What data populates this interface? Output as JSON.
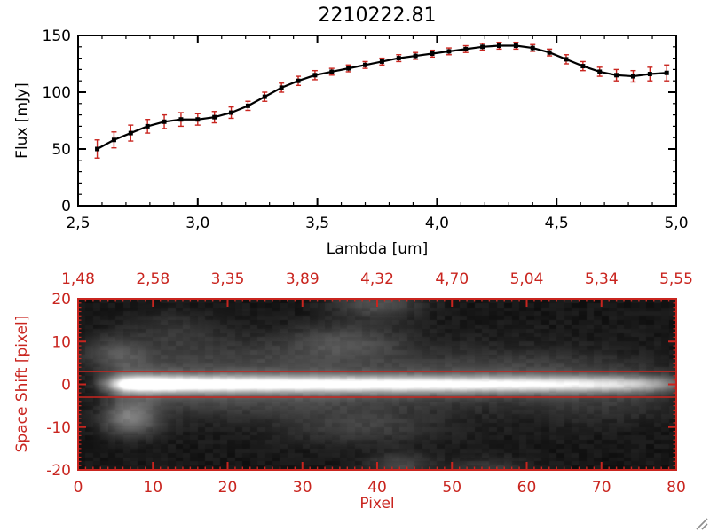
{
  "window": {
    "background": "#ffffff"
  },
  "palette": {
    "axis_black": "#000000",
    "axis_red": "#c9251f"
  },
  "resize_grip": {
    "present": true,
    "color": "#8f8f8f"
  },
  "chart_data": [
    {
      "type": "line",
      "title": "2210222.81",
      "xlabel": "Lambda [um]",
      "ylabel": "Flux [mJy]",
      "xlim": [
        2.5,
        5.0
      ],
      "ylim": [
        0,
        150
      ],
      "xticks": [
        2.5,
        3.0,
        3.5,
        4.0,
        4.5,
        5.0
      ],
      "xtick_labels": [
        "2,5",
        "3,0",
        "3,5",
        "4,0",
        "4,5",
        "5,0"
      ],
      "x_minor_step": 0.1,
      "yticks": [
        0,
        50,
        100,
        150
      ],
      "ytick_labels": [
        "0",
        "50",
        "100",
        "150"
      ],
      "y_minor_step": 10,
      "grid": false,
      "marker": "filled-square",
      "line_color": "#000000",
      "marker_color": "#000000",
      "axis_color": "#000000",
      "error_color": "#c9251f",
      "x": [
        2.58,
        2.65,
        2.72,
        2.79,
        2.86,
        2.93,
        3.0,
        3.07,
        3.14,
        3.21,
        3.28,
        3.35,
        3.42,
        3.49,
        3.56,
        3.63,
        3.7,
        3.77,
        3.84,
        3.91,
        3.98,
        4.05,
        4.12,
        4.19,
        4.26,
        4.33,
        4.4,
        4.47,
        4.54,
        4.61,
        4.68,
        4.75,
        4.82,
        4.89,
        4.96
      ],
      "y": [
        50,
        58,
        64,
        70,
        74,
        76,
        76,
        78,
        82,
        88,
        96,
        104,
        110,
        115,
        118,
        121,
        124,
        127,
        130,
        132,
        134,
        136,
        138,
        140,
        141,
        141,
        139,
        135,
        129,
        123,
        118,
        115,
        114,
        116,
        117
      ],
      "yerr": [
        8,
        7,
        7,
        6,
        6,
        6,
        5,
        5,
        5,
        4,
        4,
        4,
        4,
        4,
        3,
        3,
        3,
        3,
        3,
        3,
        3,
        3,
        3,
        3,
        3,
        3,
        3,
        3,
        4,
        4,
        4,
        5,
        5,
        6,
        7
      ]
    },
    {
      "type": "heatmap",
      "xlabel": "Pixel",
      "ylabel": "Space Shift [pixel]",
      "axis_color": "#c9251f",
      "colormap": "grayscale",
      "xlim": [
        0,
        80
      ],
      "ylim": [
        -20,
        20
      ],
      "xticks": [
        0,
        10,
        20,
        30,
        40,
        50,
        60,
        70,
        80
      ],
      "xtick_labels": [
        "0",
        "10",
        "20",
        "30",
        "40",
        "50",
        "60",
        "70",
        "80"
      ],
      "x_minor_step": 1,
      "yticks": [
        20,
        10,
        0,
        -10,
        -20
      ],
      "ytick_labels": [
        "20",
        "10",
        "0",
        "-10",
        "-20"
      ],
      "y_minor_step": 1,
      "top_axis_tick_labels": [
        "1,48",
        "2,58",
        "3,35",
        "3,89",
        "4,32",
        "4,70",
        "5,04",
        "5,34",
        "5,55"
      ],
      "extraction_window": [
        3,
        -3
      ],
      "trace": {
        "center": 0,
        "sigma_core": 1.3,
        "wing1_frac": 0.22,
        "wing1_sigma": 3.0,
        "wing2_frac": 0.06,
        "wing2_sigma": 7.5,
        "profile": [
          [
            0,
            0
          ],
          [
            2,
            5
          ],
          [
            4,
            32
          ],
          [
            6,
            82
          ],
          [
            8,
            100
          ],
          [
            10,
            100
          ],
          [
            13,
            96
          ],
          [
            17,
            90
          ],
          [
            22,
            87
          ],
          [
            28,
            85
          ],
          [
            35,
            83
          ],
          [
            42,
            82
          ],
          [
            50,
            80
          ],
          [
            57,
            77
          ],
          [
            63,
            73
          ],
          [
            68,
            70
          ],
          [
            72,
            64
          ],
          [
            75,
            55
          ],
          [
            78,
            38
          ],
          [
            80,
            22
          ]
        ]
      },
      "blobs": [
        {
          "x": 7,
          "y": -8,
          "sx": 2.5,
          "sy": 2.8,
          "a": 34
        },
        {
          "x": 5,
          "y": 7,
          "sx": 3,
          "sy": 3,
          "a": 16
        },
        {
          "x": 25,
          "y": 7,
          "sx": 16,
          "sy": 3.5,
          "a": 9
        },
        {
          "x": 36,
          "y": 10,
          "sx": 5,
          "sy": 3,
          "a": 15
        },
        {
          "x": 40,
          "y": 19,
          "sx": 4,
          "sy": 2.5,
          "a": 20
        },
        {
          "x": 13,
          "y": 13,
          "sx": 4,
          "sy": 3,
          "a": 8
        },
        {
          "x": 38,
          "y": -10,
          "sx": 7,
          "sy": 3,
          "a": 12
        },
        {
          "x": 43,
          "y": -19,
          "sx": 3,
          "sy": 2,
          "a": 16
        },
        {
          "x": 55,
          "y": -20,
          "sx": 4,
          "sy": 2,
          "a": 12
        },
        {
          "x": 25,
          "y": -5,
          "sx": 12,
          "sy": 2.5,
          "a": 7
        },
        {
          "x": 60,
          "y": 5,
          "sx": 9,
          "sy": 2.5,
          "a": 6
        },
        {
          "x": 70,
          "y": -6,
          "sx": 6,
          "sy": 2.5,
          "a": 5
        }
      ]
    }
  ]
}
